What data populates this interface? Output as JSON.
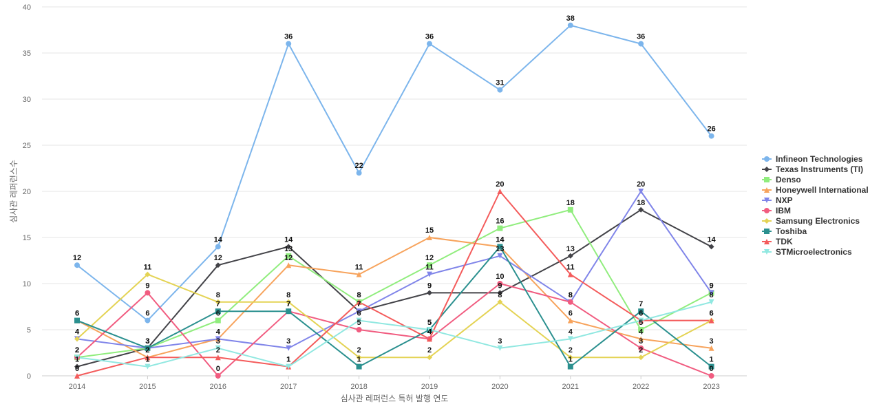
{
  "chart_data": {
    "type": "line",
    "title": "",
    "xlabel": "심사관 레퍼런스 특허 발행 연도",
    "ylabel": "심사관 레퍼런스수",
    "categories": [
      "2014",
      "2015",
      "2016",
      "2017",
      "2018",
      "2019",
      "2020",
      "2021",
      "2022",
      "2023"
    ],
    "ylim": [
      0,
      40
    ],
    "yticks": [
      0,
      5,
      10,
      15,
      20,
      25,
      30,
      35,
      40
    ],
    "grid": true,
    "legend_position": "right",
    "series": [
      {
        "name": "Infineon Technologies",
        "color": "#7cb5ec",
        "marker": "circle",
        "values": [
          12,
          6,
          14,
          36,
          22,
          36,
          31,
          38,
          36,
          26
        ]
      },
      {
        "name": "Texas Instruments (TI)",
        "color": "#434348",
        "marker": "diamond",
        "values": [
          1,
          3,
          12,
          14,
          7,
          9,
          9,
          13,
          18,
          14
        ]
      },
      {
        "name": "Denso",
        "color": "#90ed7d",
        "marker": "square",
        "values": [
          2,
          3,
          6,
          13,
          8,
          12,
          16,
          18,
          5,
          9
        ]
      },
      {
        "name": "Honeywell International",
        "color": "#f7a35c",
        "marker": "triangle",
        "values": [
          6,
          2,
          4,
          12,
          11,
          15,
          14,
          6,
          4,
          3
        ]
      },
      {
        "name": "NXP",
        "color": "#8085e9",
        "marker": "triangle-down",
        "values": [
          4,
          3,
          4,
          3,
          7,
          11,
          13,
          8,
          20,
          9
        ]
      },
      {
        "name": "IBM",
        "color": "#f15c80",
        "marker": "circle",
        "values": [
          2,
          9,
          0,
          7,
          5,
          4,
          10,
          8,
          3,
          0
        ]
      },
      {
        "name": "Samsung Electronics",
        "color": "#e4d354",
        "marker": "diamond",
        "values": [
          4,
          11,
          8,
          8,
          2,
          2,
          8,
          2,
          2,
          6
        ]
      },
      {
        "name": "Toshiba",
        "color": "#2b908f",
        "marker": "square",
        "values": [
          6,
          3,
          7,
          7,
          1,
          5,
          14,
          1,
          7,
          1
        ]
      },
      {
        "name": "TDK",
        "color": "#f45b5b",
        "marker": "triangle",
        "values": [
          0,
          2,
          2,
          1,
          8,
          4,
          20,
          11,
          6,
          6
        ]
      },
      {
        "name": "STMicroelectronics",
        "color": "#91e8e1",
        "marker": "triangle-down",
        "values": [
          2,
          1,
          3,
          1,
          6,
          5,
          3,
          4,
          6,
          8
        ]
      }
    ]
  }
}
